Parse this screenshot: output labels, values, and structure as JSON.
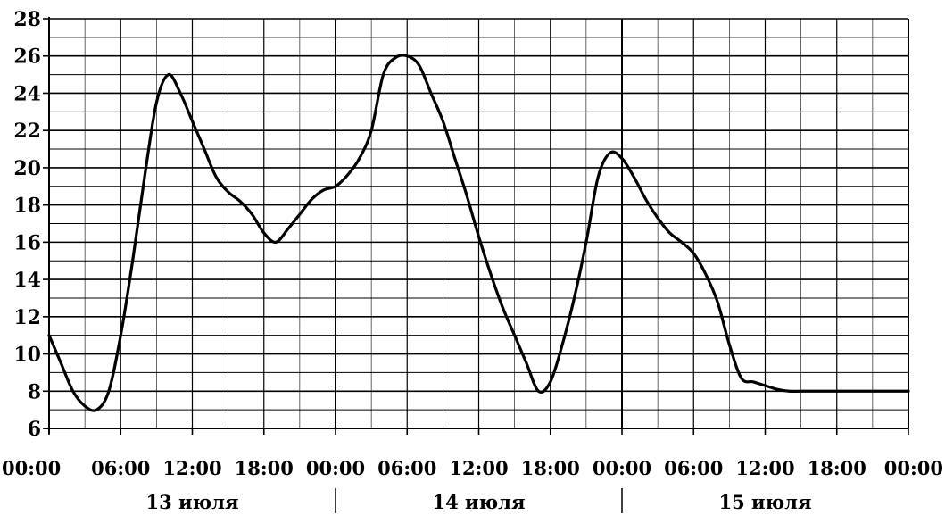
{
  "chart_data": {
    "type": "line",
    "title": "",
    "xlabel": "",
    "ylabel": "",
    "ylim": [
      6,
      28
    ],
    "yticks": [
      "6",
      "8",
      "10",
      "12",
      "14",
      "16",
      "18",
      "20",
      "22",
      "24",
      "26",
      "28"
    ],
    "xlim_hours": [
      0,
      72
    ],
    "xtick_labels": [
      "00:00",
      "06:00",
      "12:00",
      "18:00",
      "00:00",
      "06:00",
      "12:00",
      "18:00",
      "00:00",
      "06:00",
      "12:00",
      "18:00",
      "00:00"
    ],
    "days": [
      "13 июля",
      "14 июля",
      "15 июля"
    ],
    "grid": true,
    "series": [
      {
        "x": [
          0,
          1,
          2,
          3,
          4,
          5,
          6,
          7,
          8,
          9,
          10,
          11,
          12,
          13,
          14,
          15,
          16,
          17,
          18,
          19,
          20,
          21,
          22,
          23,
          24,
          25,
          26,
          27,
          28,
          29,
          30,
          31,
          32,
          33,
          34,
          35,
          36,
          37,
          38,
          39,
          40,
          41,
          42,
          43,
          44,
          45,
          46,
          47,
          48,
          49,
          50,
          51,
          52,
          53,
          54,
          55,
          56,
          57,
          58,
          59,
          60,
          61,
          62,
          63,
          64,
          65,
          66,
          67,
          68,
          69,
          70,
          71,
          72
        ],
        "values": [
          11,
          9.5,
          8,
          7.2,
          7,
          8,
          11,
          15,
          19.5,
          23.5,
          25,
          24,
          22.5,
          21,
          19.5,
          18.7,
          18.2,
          17.5,
          16.5,
          16,
          16.7,
          17.5,
          18.3,
          18.8,
          19,
          19.6,
          20.5,
          22,
          25,
          25.9,
          26,
          25.5,
          24,
          22.5,
          20.5,
          18.5,
          16.3,
          14.3,
          12.5,
          11,
          9.5,
          8,
          8.5,
          10.5,
          13,
          16,
          19.5,
          20.8,
          20.5,
          19.5,
          18.3,
          17.3,
          16.5,
          16,
          15.4,
          14.3,
          12.8,
          10.5,
          8.7,
          8.5,
          8.3,
          8.1,
          8,
          8,
          8,
          8,
          8,
          8,
          8,
          8,
          8,
          8,
          8
        ]
      }
    ]
  }
}
